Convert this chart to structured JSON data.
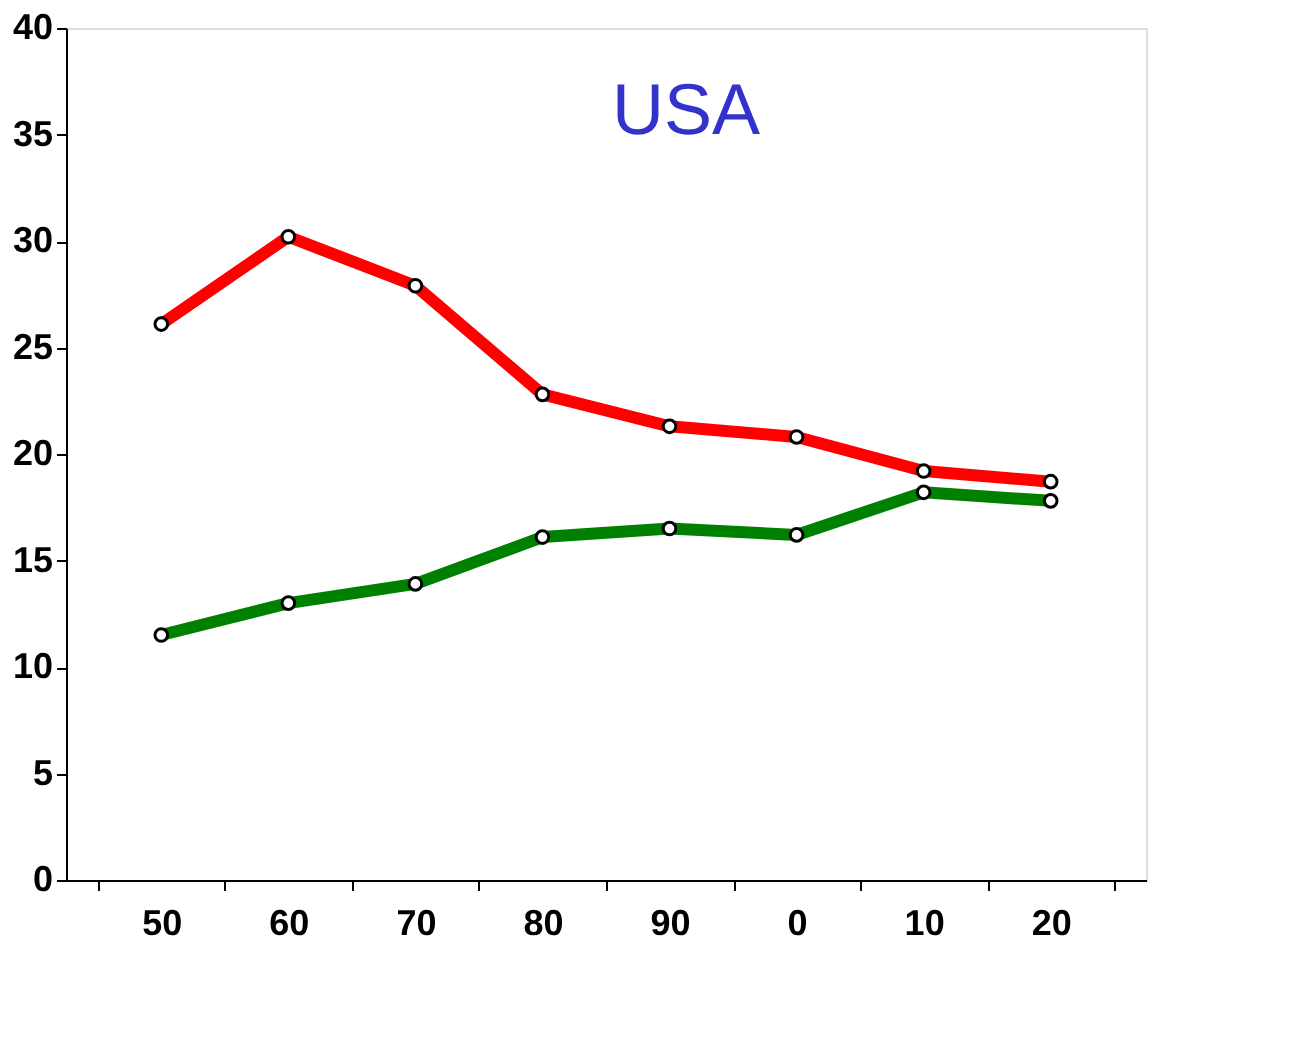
{
  "chart_data": {
    "type": "line",
    "title": "USA",
    "categories": [
      "50",
      "60",
      "70",
      "80",
      "90",
      "0",
      "10",
      "20"
    ],
    "series": [
      {
        "color": "#ff0000",
        "values": [
          26.1,
          30.2,
          27.9,
          22.8,
          21.3,
          20.8,
          19.2,
          18.7
        ]
      },
      {
        "color": "#008000",
        "values": [
          11.5,
          13.0,
          13.9,
          16.1,
          16.5,
          16.2,
          18.2,
          17.8
        ]
      }
    ],
    "ylim": [
      0,
      40
    ],
    "yticks": [
      0,
      5,
      10,
      15,
      20,
      25,
      30,
      35,
      40
    ],
    "grid": false,
    "legend": false,
    "marker": "circle",
    "line_style": "solid"
  }
}
